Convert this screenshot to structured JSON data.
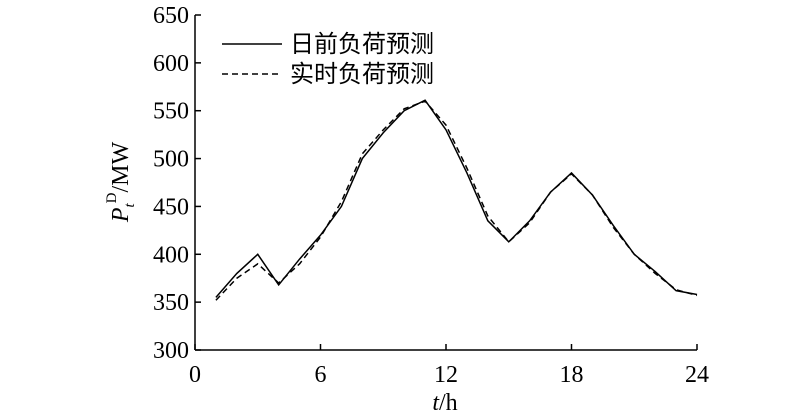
{
  "chart_data": {
    "type": "line",
    "x": [
      1,
      2,
      3,
      4,
      5,
      6,
      7,
      8,
      9,
      10,
      11,
      12,
      13,
      14,
      15,
      16,
      17,
      18,
      19,
      20,
      21,
      22,
      23,
      24
    ],
    "series": [
      {
        "name": "日前负荷预测",
        "color": "#000000",
        "dash": "solid",
        "values": [
          355,
          380,
          400,
          368,
          395,
          420,
          450,
          500,
          527,
          550,
          561,
          530,
          485,
          435,
          413,
          435,
          465,
          485,
          462,
          430,
          400,
          382,
          362,
          358
        ]
      },
      {
        "name": "实时负荷预测",
        "color": "#000000",
        "dash": "dashed",
        "values": [
          352,
          375,
          390,
          370,
          390,
          418,
          455,
          505,
          530,
          552,
          560,
          535,
          490,
          440,
          413,
          433,
          465,
          484,
          462,
          428,
          400,
          380,
          363,
          357
        ]
      }
    ],
    "xlim": [
      0,
      24
    ],
    "xticks": [
      0,
      6,
      12,
      18,
      24
    ],
    "ylim": [
      300,
      650
    ],
    "yticks": [
      300,
      350,
      400,
      450,
      500,
      550,
      600,
      650
    ],
    "x_label": {
      "symbol": "t",
      "unit": "/h"
    },
    "y_label": {
      "symbol": "P",
      "subscript": "t",
      "superscript": "D",
      "unit": "/MW"
    },
    "legend": "upper left",
    "grid": false
  }
}
